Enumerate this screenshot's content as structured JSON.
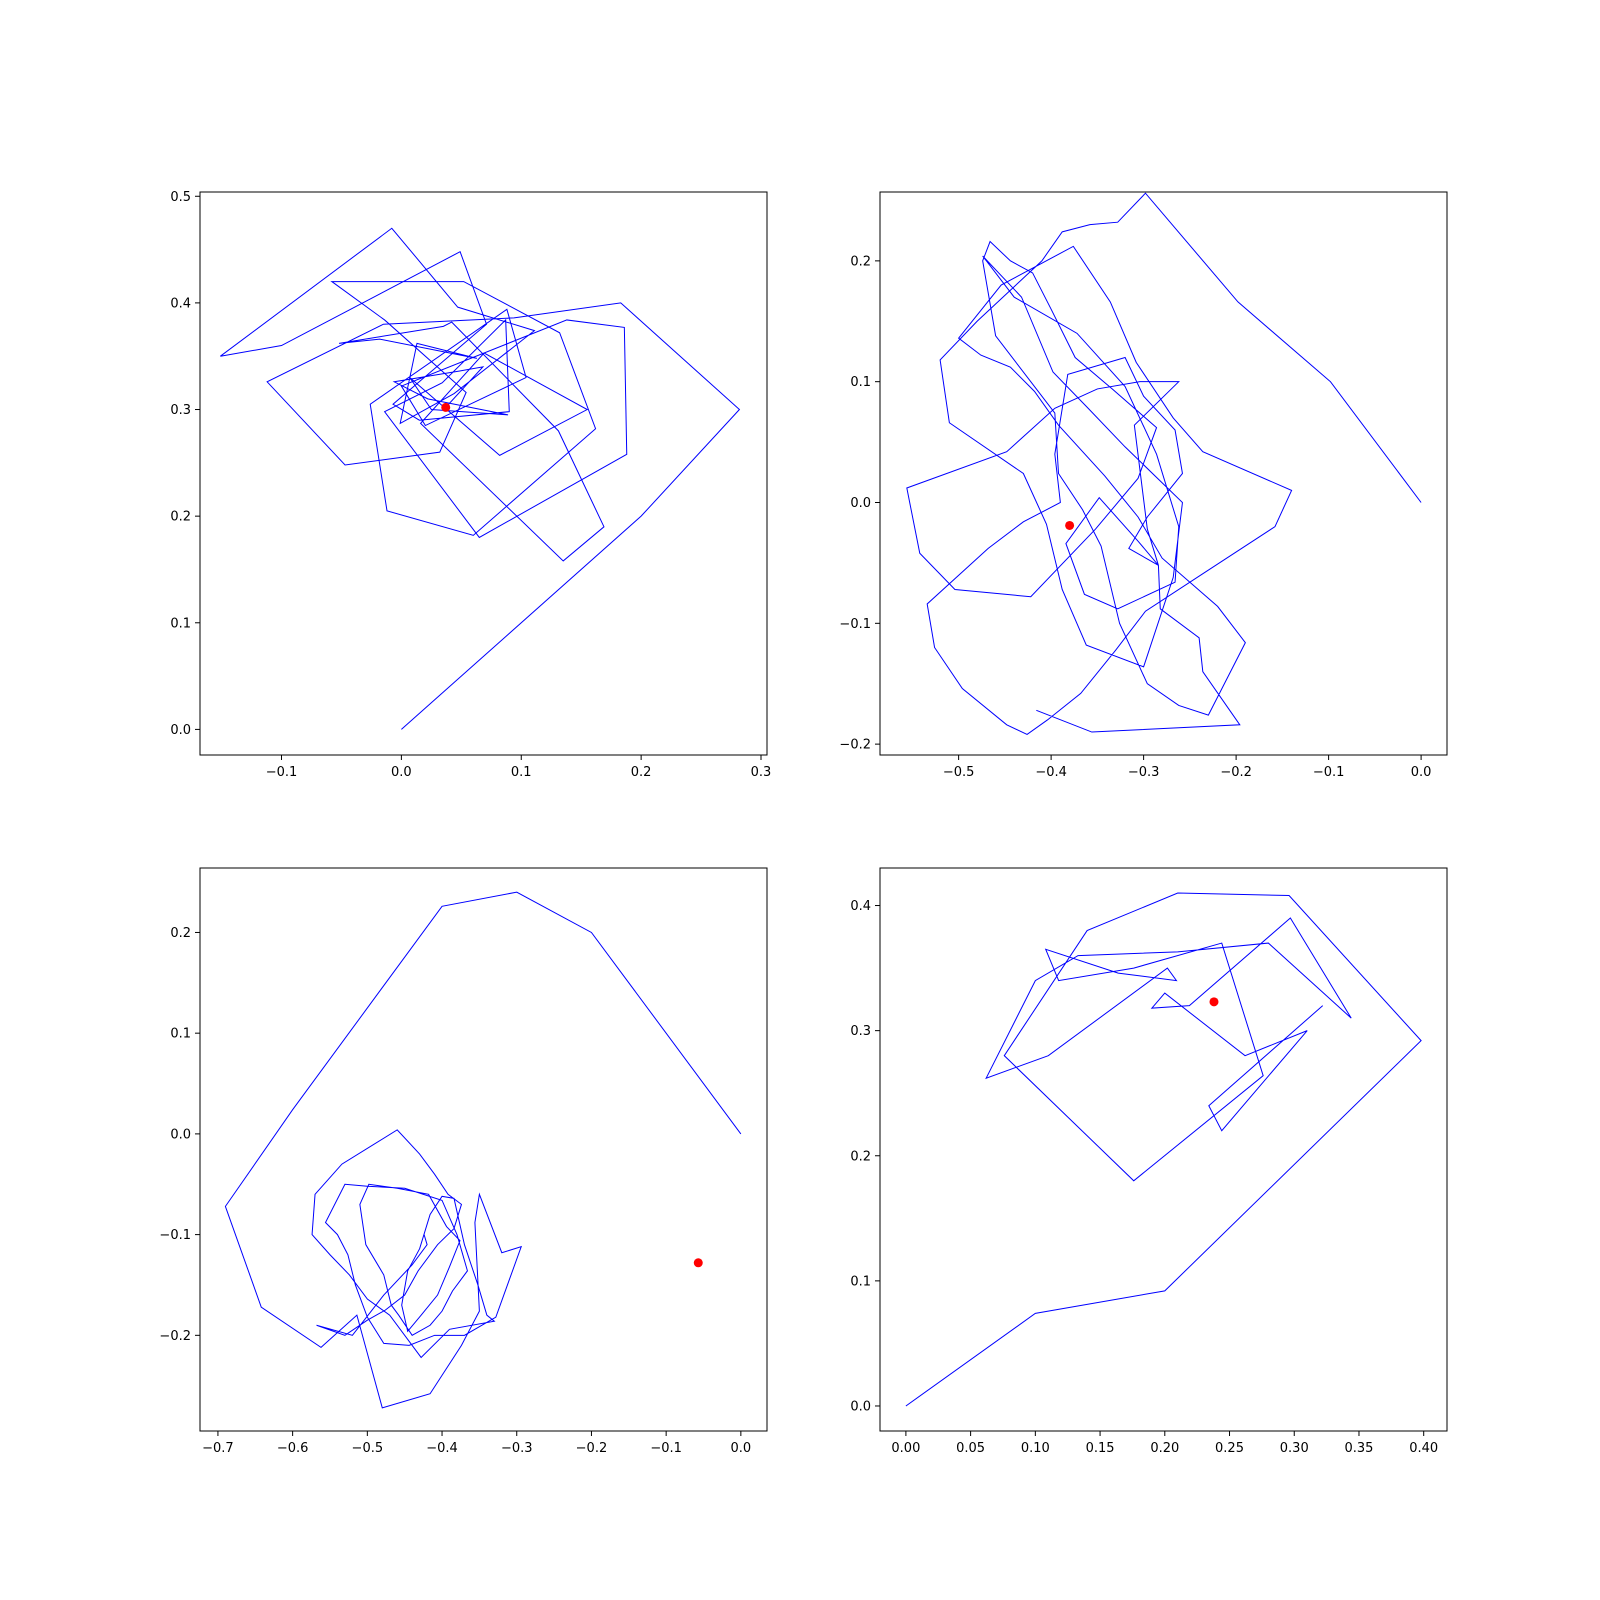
{
  "figure": {
    "background": "#ffffff"
  },
  "chart_data": [
    {
      "type": "line",
      "panel": "top-left",
      "title": "",
      "xlabel": "",
      "ylabel": "",
      "xlim": [
        -0.168,
        0.305
      ],
      "ylim": [
        -0.024,
        0.504
      ],
      "xticks": [
        -0.1,
        0.0,
        0.1,
        0.2,
        0.3
      ],
      "xtick_labels": [
        "−0.1",
        "0.0",
        "0.1",
        "0.2",
        "0.3"
      ],
      "yticks": [
        0.0,
        0.1,
        0.2,
        0.3,
        0.4,
        0.5
      ],
      "ytick_labels": [
        "0.0",
        "0.1",
        "0.2",
        "0.3",
        "0.4",
        "0.5"
      ],
      "grid": false,
      "line_color": "#0000ff",
      "marker_color": "#ff0000",
      "series": [
        {
          "x": [
            0.0,
            0.2,
            0.282,
            0.183,
            0.094,
            -0.015,
            -0.112,
            -0.047,
            0.032,
            0.054,
            -0.014,
            -0.058,
            0.052,
            0.132,
            0.162,
            0.06,
            -0.012,
            -0.026,
            0.088,
            0.104,
            0.02,
            0.0,
            0.138,
            0.186,
            0.188,
            0.065,
            -0.014,
            0.034,
            0.087,
            0.09,
            0.015,
            -0.007,
            0.071,
            0.049,
            -0.1,
            -0.151,
            -0.008,
            0.047,
            0.111,
            0.044,
            -0.001,
            0.013,
            0.063,
            -0.018,
            -0.052,
            0.035,
            0.042,
            0.131,
            0.169,
            0.135,
            0.016,
            0.069,
            0.155,
            0.082,
            0.007,
            0.025,
            0.089,
            0.022,
            -0.006,
            0.048,
            0.068,
            0.037
          ],
          "y": [
            0.0,
            0.2,
            0.3,
            0.4,
            0.386,
            0.38,
            0.326,
            0.248,
            0.26,
            0.316,
            0.384,
            0.42,
            0.42,
            0.372,
            0.282,
            0.182,
            0.205,
            0.305,
            0.394,
            0.33,
            0.285,
            0.322,
            0.384,
            0.377,
            0.258,
            0.18,
            0.298,
            0.325,
            0.384,
            0.298,
            0.29,
            0.305,
            0.38,
            0.448,
            0.36,
            0.35,
            0.47,
            0.396,
            0.374,
            0.315,
            0.287,
            0.362,
            0.348,
            0.366,
            0.362,
            0.378,
            0.382,
            0.28,
            0.19,
            0.158,
            0.287,
            0.353,
            0.3,
            0.257,
            0.33,
            0.3,
            0.295,
            0.31,
            0.326,
            0.336,
            0.34,
            0.302
          ]
        }
      ],
      "markers": [
        {
          "x": 0.037,
          "y": 0.302
        }
      ]
    },
    {
      "type": "line",
      "panel": "top-right",
      "title": "",
      "xlabel": "",
      "ylabel": "",
      "xlim": [
        -0.585,
        0.028
      ],
      "ylim": [
        -0.209,
        0.257
      ],
      "xticks": [
        -0.5,
        -0.4,
        -0.3,
        -0.2,
        -0.1,
        0.0
      ],
      "xtick_labels": [
        "−0.5",
        "−0.4",
        "−0.3",
        "−0.2",
        "−0.1",
        "0.0"
      ],
      "yticks": [
        -0.2,
        -0.1,
        0.0,
        0.1,
        0.2
      ],
      "ytick_labels": [
        "−0.2",
        "−0.1",
        "0.0",
        "0.1",
        "0.2"
      ],
      "grid": false,
      "line_color": "#0000ff",
      "marker_color": "#ff0000",
      "series": [
        {
          "x": [
            0.0,
            -0.098,
            -0.198,
            -0.298,
            -0.328,
            -0.358,
            -0.388,
            -0.41,
            -0.48,
            -0.52,
            -0.51,
            -0.43,
            -0.405,
            -0.388,
            -0.362,
            -0.3,
            -0.268,
            -0.258,
            -0.32,
            -0.36,
            -0.398,
            -0.432,
            -0.474,
            -0.47,
            -0.44,
            -0.372,
            -0.32,
            -0.286,
            -0.262,
            -0.266,
            -0.328,
            -0.364,
            -0.384,
            -0.348,
            -0.306,
            -0.284,
            -0.296,
            -0.31,
            -0.262,
            -0.304,
            -0.35,
            -0.396,
            -0.448,
            -0.556,
            -0.542,
            -0.504,
            -0.422,
            -0.352,
            -0.306,
            -0.286,
            -0.334,
            -0.374,
            -0.4,
            -0.42,
            -0.444,
            -0.466,
            -0.474,
            -0.46,
            -0.396,
            -0.392,
            -0.366,
            -0.346,
            -0.326,
            -0.296,
            -0.262,
            -0.23,
            -0.19,
            -0.22,
            -0.28,
            -0.306,
            -0.342,
            -0.392,
            -0.418,
            -0.444,
            -0.476,
            -0.5,
            -0.454,
            -0.376,
            -0.336,
            -0.308,
            -0.268,
            -0.236,
            -0.14,
            -0.158,
            -0.238,
            -0.298,
            -0.33,
            -0.368,
            -0.404,
            -0.426,
            -0.448,
            -0.496,
            -0.526,
            -0.534,
            -0.468,
            -0.43,
            -0.39,
            -0.396,
            -0.382,
            -0.32,
            -0.3,
            -0.266,
            -0.258,
            -0.296,
            -0.316,
            -0.284,
            -0.282,
            -0.24,
            -0.236,
            -0.196,
            -0.356,
            -0.416
          ],
          "y": [
            0.0,
            0.1,
            0.166,
            0.256,
            0.232,
            0.23,
            0.224,
            0.2,
            0.15,
            0.118,
            0.066,
            0.024,
            -0.018,
            -0.072,
            -0.118,
            -0.136,
            -0.062,
            0.0,
            0.046,
            0.078,
            0.108,
            0.17,
            0.204,
            0.2,
            0.17,
            0.14,
            0.096,
            0.04,
            -0.02,
            -0.066,
            -0.088,
            -0.076,
            -0.034,
            0.004,
            -0.032,
            -0.052,
            -0.022,
            0.064,
            0.1,
            0.1,
            0.094,
            0.078,
            0.042,
            0.012,
            -0.042,
            -0.072,
            -0.078,
            -0.022,
            0.02,
            0.062,
            0.094,
            0.12,
            0.16,
            0.19,
            0.2,
            0.216,
            0.2,
            0.138,
            0.074,
            0.024,
            -0.006,
            -0.036,
            -0.1,
            -0.15,
            -0.168,
            -0.176,
            -0.116,
            -0.086,
            -0.046,
            -0.012,
            0.022,
            0.064,
            0.092,
            0.112,
            0.122,
            0.136,
            0.18,
            0.212,
            0.166,
            0.116,
            0.07,
            0.042,
            0.01,
            -0.02,
            -0.06,
            -0.09,
            -0.122,
            -0.158,
            -0.18,
            -0.192,
            -0.184,
            -0.154,
            -0.12,
            -0.084,
            -0.038,
            -0.016,
            0.0,
            0.04,
            0.106,
            0.12,
            0.088,
            0.06,
            0.024,
            -0.012,
            -0.038,
            -0.052,
            -0.088,
            -0.112,
            -0.14,
            -0.184,
            -0.19,
            -0.172
          ]
        }
      ],
      "markers": [
        {
          "x": -0.38,
          "y": -0.019
        }
      ]
    },
    {
      "type": "line",
      "panel": "bottom-left",
      "title": "",
      "xlabel": "",
      "ylabel": "",
      "xlim": [
        -0.724,
        0.035
      ],
      "ylim": [
        -0.295,
        0.264
      ],
      "xticks": [
        -0.7,
        -0.6,
        -0.5,
        -0.4,
        -0.3,
        -0.2,
        -0.1,
        0.0
      ],
      "xtick_labels": [
        "−0.7",
        "−0.6",
        "−0.5",
        "−0.4",
        "−0.3",
        "−0.2",
        "−0.1",
        "0.0"
      ],
      "yticks": [
        -0.2,
        -0.1,
        0.0,
        0.1,
        0.2
      ],
      "ytick_labels": [
        "−0.2",
        "−0.1",
        "0.0",
        "0.1",
        "0.2"
      ],
      "grid": false,
      "line_color": "#0000ff",
      "marker_color": "#ff0000",
      "series": [
        {
          "x": [
            0.0,
            -0.2,
            -0.3,
            -0.4,
            -0.6,
            -0.69,
            -0.642,
            -0.562,
            -0.514,
            -0.48,
            -0.416,
            -0.374,
            -0.35,
            -0.356,
            -0.35,
            -0.32,
            -0.294,
            -0.328,
            -0.37,
            -0.41,
            -0.444,
            -0.478,
            -0.5,
            -0.516,
            -0.526,
            -0.54,
            -0.556,
            -0.53,
            -0.5,
            -0.45,
            -0.4,
            -0.38,
            -0.366,
            -0.386,
            -0.4,
            -0.416,
            -0.44,
            -0.458,
            -0.468,
            -0.478,
            -0.502,
            -0.51,
            -0.498,
            -0.46,
            -0.418,
            -0.394,
            -0.376,
            -0.39,
            -0.406,
            -0.428,
            -0.446,
            -0.454,
            -0.446,
            -0.43,
            -0.416,
            -0.4,
            -0.384,
            -0.37,
            -0.352,
            -0.34,
            -0.33,
            -0.39,
            -0.428,
            -0.47,
            -0.5,
            -0.524,
            -0.55,
            -0.574,
            -0.57,
            -0.534,
            -0.46,
            -0.43,
            -0.41,
            -0.392,
            -0.374,
            -0.384,
            -0.406,
            -0.432,
            -0.45,
            -0.476,
            -0.5,
            -0.53,
            -0.568,
            -0.52,
            -0.478,
            -0.44,
            -0.42,
            -0.424
          ],
          "y": [
            0.0,
            0.2,
            0.24,
            0.226,
            0.024,
            -0.072,
            -0.172,
            -0.212,
            -0.18,
            -0.272,
            -0.258,
            -0.21,
            -0.176,
            -0.088,
            -0.06,
            -0.118,
            -0.112,
            -0.182,
            -0.2,
            -0.2,
            -0.21,
            -0.208,
            -0.182,
            -0.15,
            -0.12,
            -0.1,
            -0.088,
            -0.05,
            -0.052,
            -0.054,
            -0.066,
            -0.1,
            -0.136,
            -0.156,
            -0.176,
            -0.19,
            -0.2,
            -0.18,
            -0.17,
            -0.14,
            -0.11,
            -0.07,
            -0.05,
            -0.054,
            -0.06,
            -0.092,
            -0.106,
            -0.132,
            -0.16,
            -0.18,
            -0.196,
            -0.17,
            -0.136,
            -0.114,
            -0.08,
            -0.062,
            -0.064,
            -0.11,
            -0.15,
            -0.18,
            -0.186,
            -0.194,
            -0.222,
            -0.18,
            -0.164,
            -0.14,
            -0.12,
            -0.1,
            -0.06,
            -0.03,
            0.004,
            -0.02,
            -0.04,
            -0.06,
            -0.07,
            -0.094,
            -0.11,
            -0.136,
            -0.16,
            -0.175,
            -0.185,
            -0.2,
            -0.19,
            -0.2,
            -0.16,
            -0.13,
            -0.11,
            -0.1
          ]
        }
      ],
      "markers": [
        {
          "x": -0.057,
          "y": -0.128
        }
      ]
    },
    {
      "type": "line",
      "panel": "bottom-right",
      "title": "",
      "xlabel": "",
      "ylabel": "",
      "xlim": [
        -0.02,
        0.418
      ],
      "ylim": [
        -0.02,
        0.43
      ],
      "xticks": [
        0.0,
        0.05,
        0.1,
        0.15,
        0.2,
        0.25,
        0.3,
        0.35,
        0.4
      ],
      "xtick_labels": [
        "0.00",
        "0.05",
        "0.10",
        "0.15",
        "0.20",
        "0.25",
        "0.30",
        "0.35",
        "0.40"
      ],
      "yticks": [
        0.0,
        0.1,
        0.2,
        0.3,
        0.4
      ],
      "ytick_labels": [
        "0.0",
        "0.1",
        "0.2",
        "0.3",
        "0.4"
      ],
      "grid": false,
      "line_color": "#0000ff",
      "marker_color": "#ff0000",
      "series": [
        {
          "x": [
            0.0,
            0.1,
            0.2,
            0.398,
            0.296,
            0.21,
            0.14,
            0.076,
            0.176,
            0.276,
            0.244,
            0.176,
            0.118,
            0.108,
            0.164,
            0.209,
            0.202,
            0.11,
            0.062,
            0.1,
            0.133,
            0.21,
            0.28,
            0.344,
            0.297,
            0.219,
            0.19,
            0.2,
            0.262,
            0.31,
            0.244,
            0.234,
            0.322
          ],
          "y": [
            0.0,
            0.074,
            0.092,
            0.292,
            0.408,
            0.41,
            0.38,
            0.28,
            0.18,
            0.264,
            0.37,
            0.35,
            0.34,
            0.365,
            0.346,
            0.34,
            0.35,
            0.28,
            0.262,
            0.34,
            0.36,
            0.363,
            0.37,
            0.31,
            0.39,
            0.32,
            0.318,
            0.33,
            0.28,
            0.3,
            0.22,
            0.24,
            0.32
          ]
        }
      ],
      "markers": [
        {
          "x": 0.238,
          "y": 0.323
        }
      ]
    }
  ]
}
